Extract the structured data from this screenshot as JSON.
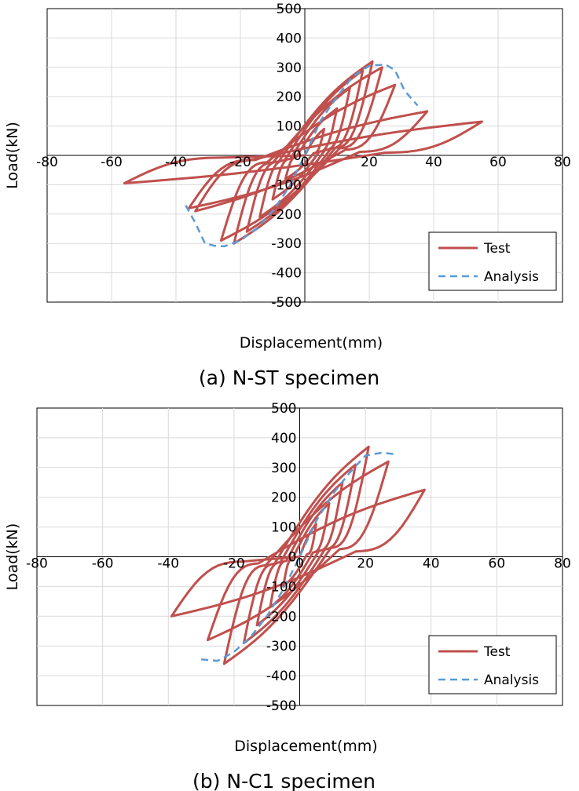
{
  "colors": {
    "test": "#c0504d",
    "analysis": "#5b9bd5",
    "grid": "#d9d9d9",
    "frame": "#000000"
  },
  "chart_data": [
    {
      "type": "line",
      "caption": "(a) N-ST specimen",
      "xlabel": "Displacement(mm)",
      "ylabel": "Load(kN)",
      "xlim": [
        -80,
        80
      ],
      "ylim": [
        -500,
        500
      ],
      "xticks": [
        -80,
        -60,
        -40,
        -20,
        0,
        20,
        40,
        60,
        80
      ],
      "yticks": [
        -500,
        -400,
        -300,
        -200,
        -100,
        0,
        100,
        200,
        300,
        400,
        500
      ],
      "legend": "bottom-right",
      "series": [
        {
          "name": "Test",
          "style": "solid",
          "loops": [
            {
              "peak_pos": [
                6,
                90
              ],
              "peak_neg": [
                -6,
                -80
              ]
            },
            {
              "peak_pos": [
                10,
                160
              ],
              "peak_neg": [
                -10,
                -150
              ]
            },
            {
              "peak_pos": [
                14,
                230
              ],
              "peak_neg": [
                -14,
                -210
              ]
            },
            {
              "peak_pos": [
                18,
                290
              ],
              "peak_neg": [
                -18,
                -260
              ]
            },
            {
              "peak_pos": [
                21,
                320
              ],
              "peak_neg": [
                -22,
                -300
              ]
            },
            {
              "peak_pos": [
                24,
                300
              ],
              "peak_neg": [
                -26,
                -290
              ]
            },
            {
              "peak_pos": [
                28,
                240
              ],
              "peak_neg": [
                -34,
                -190
              ]
            },
            {
              "peak_pos": [
                38,
                150
              ],
              "peak_neg": [
                -36,
                -180
              ]
            },
            {
              "peak_pos": [
                55,
                115
              ],
              "peak_neg": [
                -56,
                -95
              ]
            }
          ]
        },
        {
          "name": "Analysis",
          "style": "dashed",
          "x": [
            -37,
            -34,
            -31,
            -28,
            -25,
            -20,
            -15,
            -10,
            -5,
            0,
            5,
            10,
            15,
            20,
            25,
            28,
            31,
            35
          ],
          "y": [
            -170,
            -230,
            -300,
            -308,
            -310,
            -290,
            -250,
            -190,
            -110,
            0,
            120,
            200,
            270,
            305,
            310,
            290,
            220,
            170
          ]
        }
      ]
    },
    {
      "type": "line",
      "caption": "(b) N-C1 specimen",
      "xlabel": "Displacement(mm)",
      "ylabel": "Load(kN)",
      "xlim": [
        -80,
        80
      ],
      "ylim": [
        -500,
        500
      ],
      "xticks": [
        -80,
        -60,
        -40,
        -20,
        0,
        20,
        40,
        60,
        80
      ],
      "yticks": [
        -500,
        -400,
        -300,
        -200,
        -100,
        0,
        100,
        200,
        300,
        400,
        500
      ],
      "legend": "bottom-right",
      "series": [
        {
          "name": "Test",
          "style": "solid",
          "loops": [
            {
              "peak_pos": [
                5,
                110
              ],
              "peak_neg": [
                -5,
                -100
              ]
            },
            {
              "peak_pos": [
                9,
                180
              ],
              "peak_neg": [
                -9,
                -170
              ]
            },
            {
              "peak_pos": [
                13,
                250
              ],
              "peak_neg": [
                -13,
                -230
              ]
            },
            {
              "peak_pos": [
                17,
                310
              ],
              "peak_neg": [
                -17,
                -290
              ]
            },
            {
              "peak_pos": [
                21,
                370
              ],
              "peak_neg": [
                -23,
                -360
              ]
            },
            {
              "peak_pos": [
                27,
                320
              ],
              "peak_neg": [
                -28,
                -280
              ]
            },
            {
              "peak_pos": [
                38,
                225
              ],
              "peak_neg": [
                -39,
                -200
              ]
            }
          ]
        },
        {
          "name": "Analysis",
          "style": "dashed",
          "x": [
            -30,
            -25,
            -20,
            -15,
            -10,
            -5,
            0,
            5,
            10,
            15,
            20,
            25,
            29
          ],
          "y": [
            -345,
            -350,
            -320,
            -270,
            -200,
            -110,
            0,
            120,
            210,
            280,
            340,
            350,
            345
          ]
        }
      ]
    }
  ]
}
